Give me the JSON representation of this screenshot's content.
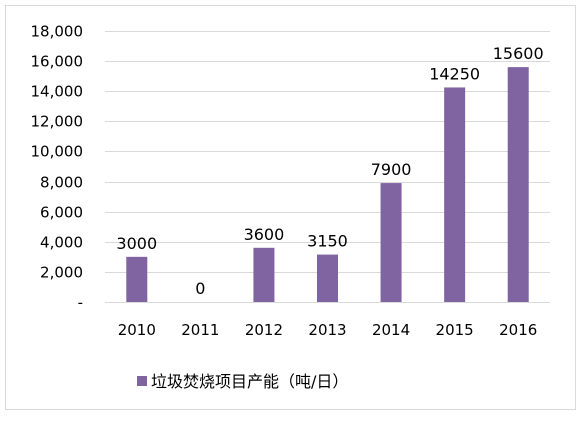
{
  "chart_data": {
    "type": "bar",
    "categories": [
      "2010",
      "2011",
      "2012",
      "2013",
      "2014",
      "2015",
      "2016"
    ],
    "values": [
      3000,
      0,
      3600,
      3150,
      7900,
      14250,
      15600
    ],
    "data_labels": [
      "3000",
      "0",
      "3600",
      "3150",
      "7900",
      "14250",
      "15600"
    ],
    "series": [
      {
        "name": "垃圾焚烧项目产能（吨/日）",
        "values": [
          3000,
          0,
          3600,
          3150,
          7900,
          14250,
          15600
        ],
        "color": "#8064a2"
      }
    ],
    "ylim": [
      0,
      18000
    ],
    "y_ticks": [
      0,
      2000,
      4000,
      6000,
      8000,
      10000,
      12000,
      14000,
      16000,
      18000
    ],
    "y_tick_labels": [
      "-",
      "2,000",
      "4,000",
      "6,000",
      "8,000",
      "10,000",
      "12,000",
      "14,000",
      "16,000",
      "18,000"
    ],
    "grid": true,
    "legend_position": "bottom",
    "legend": "垃圾焚烧项目产能（吨/日）",
    "title": "",
    "xlabel": "",
    "ylabel": ""
  },
  "colors": {
    "bar": "#8064a2",
    "grid": "#d9d9d9",
    "border": "#d9d9d9"
  }
}
